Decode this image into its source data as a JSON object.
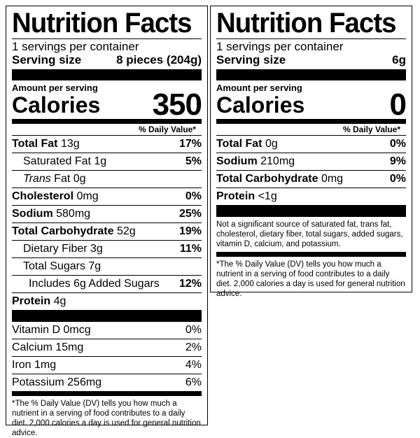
{
  "left": {
    "title": "Nutrition Facts",
    "servings": "1 servings per container",
    "serving_size_label": "Serving size",
    "serving_size_value": "8 pieces (204g)",
    "amount_label": "Amount per serving",
    "calories_label": "Calories",
    "calories_value": "350",
    "dv_header": "% Daily Value*",
    "rows": [
      {
        "label": "Total Fat",
        "amount": "13g",
        "pct": "17%"
      },
      {
        "label": "Saturated Fat",
        "amount": "1g",
        "pct": "5%"
      },
      {
        "label": "Trans",
        "label_rest": " Fat",
        "amount": "0g",
        "pct": ""
      },
      {
        "label": "Cholesterol",
        "amount": "0mg",
        "pct": "0%"
      },
      {
        "label": "Sodium",
        "amount": "580mg",
        "pct": "25%"
      },
      {
        "label": "Total Carbohydrate",
        "amount": "52g",
        "pct": "19%"
      },
      {
        "label": "Dietary Fiber",
        "amount": "3g",
        "pct": "11%"
      },
      {
        "label": "Total Sugars",
        "amount": "7g",
        "pct": ""
      },
      {
        "label": "Includes 6g Added Sugars",
        "amount": "",
        "pct": "12%"
      },
      {
        "label": "Protein",
        "amount": "4g",
        "pct": ""
      }
    ],
    "vitamins": [
      {
        "label": "Vitamin D",
        "amount": "0mcg",
        "pct": "0%"
      },
      {
        "label": "Calcium",
        "amount": "15mg",
        "pct": "2%"
      },
      {
        "label": "Iron",
        "amount": "1mg",
        "pct": "4%"
      },
      {
        "label": "Potassium",
        "amount": "256mg",
        "pct": "6%"
      }
    ],
    "footnote": "*The % Daily Value (DV) tells you how much a nutrient in a serving of food contributes to a daily diet. 2,000 calories a day is used for general nutrition advice."
  },
  "right": {
    "title": "Nutrition Facts",
    "servings": "1 servings per container",
    "serving_size_label": "Serving size",
    "serving_size_value": "6g",
    "amount_label": "Amount per serving",
    "calories_label": "Calories",
    "calories_value": "0",
    "dv_header": "% Daily Value*",
    "rows": [
      {
        "label": "Total Fat",
        "amount": "0g",
        "pct": "0%"
      },
      {
        "label": "Sodium",
        "amount": "210mg",
        "pct": "9%"
      },
      {
        "label": "Total Carbohydrate",
        "amount": "0mg",
        "pct": "0%"
      },
      {
        "label": "Protein",
        "amount": "<1g",
        "pct": ""
      }
    ],
    "not_significant": "Not a significant source of saturated fat, trans fat, cholesterol, dietary fiber, total sugars, added sugars, vitamin D, calcium, and potassium.",
    "footnote": "*The % Daily Value (DV) tells you how much a nutrient in a serving of food contributes to a daily diet. 2,000 calories a day is used for general nutrition advice."
  }
}
